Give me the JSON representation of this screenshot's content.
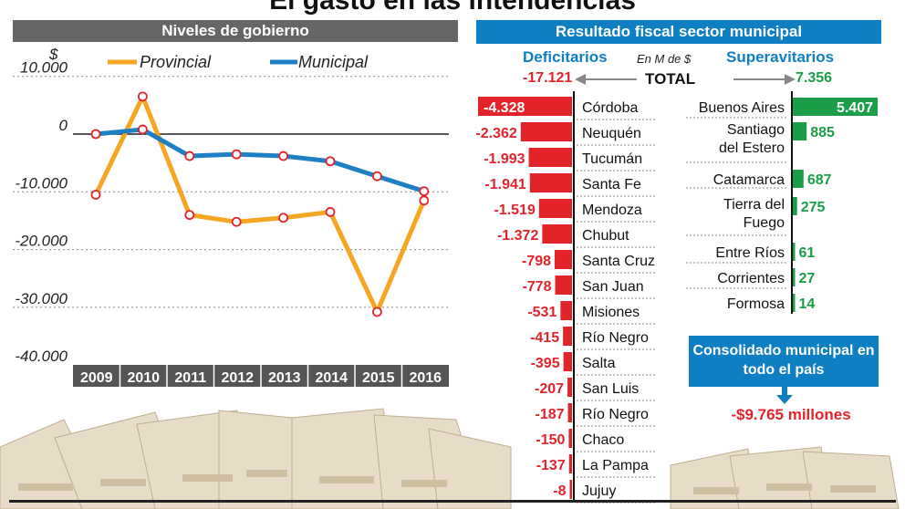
{
  "title": "El gasto en las intendencias",
  "left_header": "Niveles de gobierno",
  "right_header": "Resultado fiscal sector municipal",
  "colors": {
    "provincial": "#f5a623",
    "municipal": "#1f7fc4",
    "deficit": "#e3232a",
    "superavit": "#1a9e48",
    "header_gray": "#666666",
    "header_blue": "#0f7fc4"
  },
  "chart_data": [
    {
      "type": "line",
      "ylabel": "$",
      "ylim": [
        -40000,
        10000
      ],
      "yticks": [
        "10.000",
        "0",
        "-10.000",
        "-20.000",
        "-30.000",
        "-40.000"
      ],
      "x": [
        "2009",
        "2010",
        "2011",
        "2012",
        "2013",
        "2014",
        "2015",
        "2016"
      ],
      "series": [
        {
          "name": "Provincial",
          "values": [
            -10500,
            6500,
            -14000,
            -15200,
            -14500,
            -13500,
            -30800,
            -11500
          ]
        },
        {
          "name": "Municipal",
          "values": [
            0,
            800,
            -3800,
            -3500,
            -3800,
            -4700,
            -7300,
            -9900
          ]
        }
      ],
      "legend": "top"
    },
    {
      "type": "bar",
      "title": "Deficitarios",
      "unit": "En M de $",
      "total_label": "TOTAL",
      "total": "-17.121",
      "categories": [
        "Córdoba",
        "Neuquén",
        "Tucumán",
        "Santa Fe",
        "Mendoza",
        "Chubut",
        "Santa Cruz",
        "San Juan",
        "Misiones",
        "Río Negro",
        "Salta",
        "San Luis",
        "Río Negro",
        "Chaco",
        "La Pampa",
        "Jujuy"
      ],
      "values": [
        -4328,
        -2362,
        -1993,
        -1941,
        -1519,
        -1372,
        -798,
        -778,
        -531,
        -415,
        -395,
        -207,
        -187,
        -150,
        -137,
        -8
      ],
      "labels": [
        "-4.328",
        "-2.362",
        "-1.993",
        "-1.941",
        "-1.519",
        "-1.372",
        "-798",
        "-778",
        "-531",
        "-415",
        "-395",
        "-207",
        "-187",
        "-150",
        "-137",
        "-8"
      ]
    },
    {
      "type": "bar",
      "title": "Superavitarios",
      "total": "7.356",
      "categories": [
        "Buenos Aires",
        "Santiago del Estero",
        "Catamarca",
        "Tierra del Fuego",
        "Entre Ríos",
        "Corrientes",
        "Formosa"
      ],
      "values": [
        5407,
        885,
        687,
        275,
        61,
        27,
        14
      ],
      "labels": [
        "5.407",
        "885",
        "687",
        "275",
        "61",
        "27",
        "14"
      ]
    }
  ],
  "consolidated": {
    "label": "Consolidado municipal en todo el país",
    "value": "-$9.765 millones"
  }
}
